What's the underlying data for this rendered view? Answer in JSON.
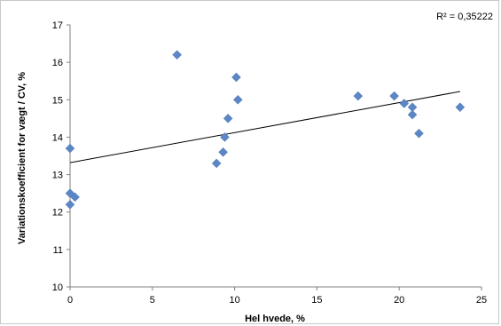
{
  "chart_data": {
    "type": "scatter",
    "xlabel": "Hel hvede, %",
    "ylabel": "Variationskoefficient for vægt / CV, %",
    "xlim": [
      0,
      25
    ],
    "ylim": [
      10,
      17
    ],
    "x_ticks": [
      "0",
      "5",
      "10",
      "15",
      "20",
      "25"
    ],
    "y_ticks": [
      "10",
      "11",
      "12",
      "13",
      "14",
      "15",
      "16",
      "17"
    ],
    "grid": false,
    "legend": "none",
    "marker_color": "#5b87c5",
    "annotation": "R² = 0,35222",
    "points": [
      {
        "x": 0.0,
        "y": 13.7
      },
      {
        "x": 0.0,
        "y": 12.5
      },
      {
        "x": 0.0,
        "y": 12.2
      },
      {
        "x": 0.3,
        "y": 12.4
      },
      {
        "x": 6.5,
        "y": 16.2
      },
      {
        "x": 8.9,
        "y": 13.3
      },
      {
        "x": 9.3,
        "y": 13.6
      },
      {
        "x": 9.4,
        "y": 14.0
      },
      {
        "x": 9.6,
        "y": 14.5
      },
      {
        "x": 10.1,
        "y": 15.6
      },
      {
        "x": 10.2,
        "y": 15.0
      },
      {
        "x": 17.5,
        "y": 15.1
      },
      {
        "x": 19.7,
        "y": 15.1
      },
      {
        "x": 20.3,
        "y": 14.9
      },
      {
        "x": 20.8,
        "y": 14.8
      },
      {
        "x": 20.8,
        "y": 14.6
      },
      {
        "x": 21.2,
        "y": 14.1
      },
      {
        "x": 23.7,
        "y": 14.8
      }
    ],
    "trendline": {
      "x": [
        0,
        23.7
      ],
      "y": [
        13.32,
        15.22
      ]
    }
  }
}
